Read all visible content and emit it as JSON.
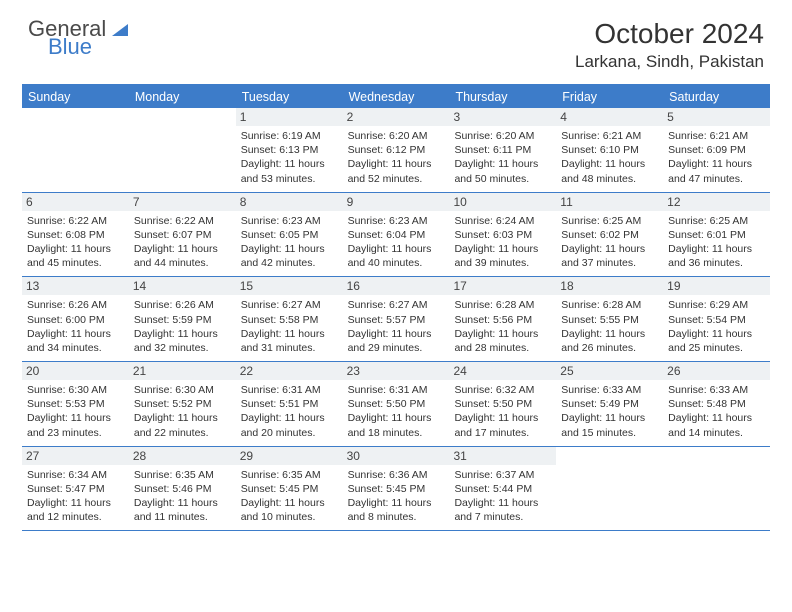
{
  "brand": {
    "part1": "General",
    "part2": "Blue"
  },
  "colors": {
    "accent": "#3d7cc9",
    "daynum_bg": "#eef1f3",
    "text": "#333333",
    "background": "#ffffff"
  },
  "title": "October 2024",
  "location": "Larkana, Sindh, Pakistan",
  "day_headers": [
    "Sunday",
    "Monday",
    "Tuesday",
    "Wednesday",
    "Thursday",
    "Friday",
    "Saturday"
  ],
  "weeks": [
    [
      {
        "num": "",
        "lines": []
      },
      {
        "num": "",
        "lines": []
      },
      {
        "num": "1",
        "lines": [
          "Sunrise: 6:19 AM",
          "Sunset: 6:13 PM",
          "Daylight: 11 hours and 53 minutes."
        ]
      },
      {
        "num": "2",
        "lines": [
          "Sunrise: 6:20 AM",
          "Sunset: 6:12 PM",
          "Daylight: 11 hours and 52 minutes."
        ]
      },
      {
        "num": "3",
        "lines": [
          "Sunrise: 6:20 AM",
          "Sunset: 6:11 PM",
          "Daylight: 11 hours and 50 minutes."
        ]
      },
      {
        "num": "4",
        "lines": [
          "Sunrise: 6:21 AM",
          "Sunset: 6:10 PM",
          "Daylight: 11 hours and 48 minutes."
        ]
      },
      {
        "num": "5",
        "lines": [
          "Sunrise: 6:21 AM",
          "Sunset: 6:09 PM",
          "Daylight: 11 hours and 47 minutes."
        ]
      }
    ],
    [
      {
        "num": "6",
        "lines": [
          "Sunrise: 6:22 AM",
          "Sunset: 6:08 PM",
          "Daylight: 11 hours and 45 minutes."
        ]
      },
      {
        "num": "7",
        "lines": [
          "Sunrise: 6:22 AM",
          "Sunset: 6:07 PM",
          "Daylight: 11 hours and 44 minutes."
        ]
      },
      {
        "num": "8",
        "lines": [
          "Sunrise: 6:23 AM",
          "Sunset: 6:05 PM",
          "Daylight: 11 hours and 42 minutes."
        ]
      },
      {
        "num": "9",
        "lines": [
          "Sunrise: 6:23 AM",
          "Sunset: 6:04 PM",
          "Daylight: 11 hours and 40 minutes."
        ]
      },
      {
        "num": "10",
        "lines": [
          "Sunrise: 6:24 AM",
          "Sunset: 6:03 PM",
          "Daylight: 11 hours and 39 minutes."
        ]
      },
      {
        "num": "11",
        "lines": [
          "Sunrise: 6:25 AM",
          "Sunset: 6:02 PM",
          "Daylight: 11 hours and 37 minutes."
        ]
      },
      {
        "num": "12",
        "lines": [
          "Sunrise: 6:25 AM",
          "Sunset: 6:01 PM",
          "Daylight: 11 hours and 36 minutes."
        ]
      }
    ],
    [
      {
        "num": "13",
        "lines": [
          "Sunrise: 6:26 AM",
          "Sunset: 6:00 PM",
          "Daylight: 11 hours and 34 minutes."
        ]
      },
      {
        "num": "14",
        "lines": [
          "Sunrise: 6:26 AM",
          "Sunset: 5:59 PM",
          "Daylight: 11 hours and 32 minutes."
        ]
      },
      {
        "num": "15",
        "lines": [
          "Sunrise: 6:27 AM",
          "Sunset: 5:58 PM",
          "Daylight: 11 hours and 31 minutes."
        ]
      },
      {
        "num": "16",
        "lines": [
          "Sunrise: 6:27 AM",
          "Sunset: 5:57 PM",
          "Daylight: 11 hours and 29 minutes."
        ]
      },
      {
        "num": "17",
        "lines": [
          "Sunrise: 6:28 AM",
          "Sunset: 5:56 PM",
          "Daylight: 11 hours and 28 minutes."
        ]
      },
      {
        "num": "18",
        "lines": [
          "Sunrise: 6:28 AM",
          "Sunset: 5:55 PM",
          "Daylight: 11 hours and 26 minutes."
        ]
      },
      {
        "num": "19",
        "lines": [
          "Sunrise: 6:29 AM",
          "Sunset: 5:54 PM",
          "Daylight: 11 hours and 25 minutes."
        ]
      }
    ],
    [
      {
        "num": "20",
        "lines": [
          "Sunrise: 6:30 AM",
          "Sunset: 5:53 PM",
          "Daylight: 11 hours and 23 minutes."
        ]
      },
      {
        "num": "21",
        "lines": [
          "Sunrise: 6:30 AM",
          "Sunset: 5:52 PM",
          "Daylight: 11 hours and 22 minutes."
        ]
      },
      {
        "num": "22",
        "lines": [
          "Sunrise: 6:31 AM",
          "Sunset: 5:51 PM",
          "Daylight: 11 hours and 20 minutes."
        ]
      },
      {
        "num": "23",
        "lines": [
          "Sunrise: 6:31 AM",
          "Sunset: 5:50 PM",
          "Daylight: 11 hours and 18 minutes."
        ]
      },
      {
        "num": "24",
        "lines": [
          "Sunrise: 6:32 AM",
          "Sunset: 5:50 PM",
          "Daylight: 11 hours and 17 minutes."
        ]
      },
      {
        "num": "25",
        "lines": [
          "Sunrise: 6:33 AM",
          "Sunset: 5:49 PM",
          "Daylight: 11 hours and 15 minutes."
        ]
      },
      {
        "num": "26",
        "lines": [
          "Sunrise: 6:33 AM",
          "Sunset: 5:48 PM",
          "Daylight: 11 hours and 14 minutes."
        ]
      }
    ],
    [
      {
        "num": "27",
        "lines": [
          "Sunrise: 6:34 AM",
          "Sunset: 5:47 PM",
          "Daylight: 11 hours and 12 minutes."
        ]
      },
      {
        "num": "28",
        "lines": [
          "Sunrise: 6:35 AM",
          "Sunset: 5:46 PM",
          "Daylight: 11 hours and 11 minutes."
        ]
      },
      {
        "num": "29",
        "lines": [
          "Sunrise: 6:35 AM",
          "Sunset: 5:45 PM",
          "Daylight: 11 hours and 10 minutes."
        ]
      },
      {
        "num": "30",
        "lines": [
          "Sunrise: 6:36 AM",
          "Sunset: 5:45 PM",
          "Daylight: 11 hours and 8 minutes."
        ]
      },
      {
        "num": "31",
        "lines": [
          "Sunrise: 6:37 AM",
          "Sunset: 5:44 PM",
          "Daylight: 11 hours and 7 minutes."
        ]
      },
      {
        "num": "",
        "lines": []
      },
      {
        "num": "",
        "lines": []
      }
    ]
  ]
}
